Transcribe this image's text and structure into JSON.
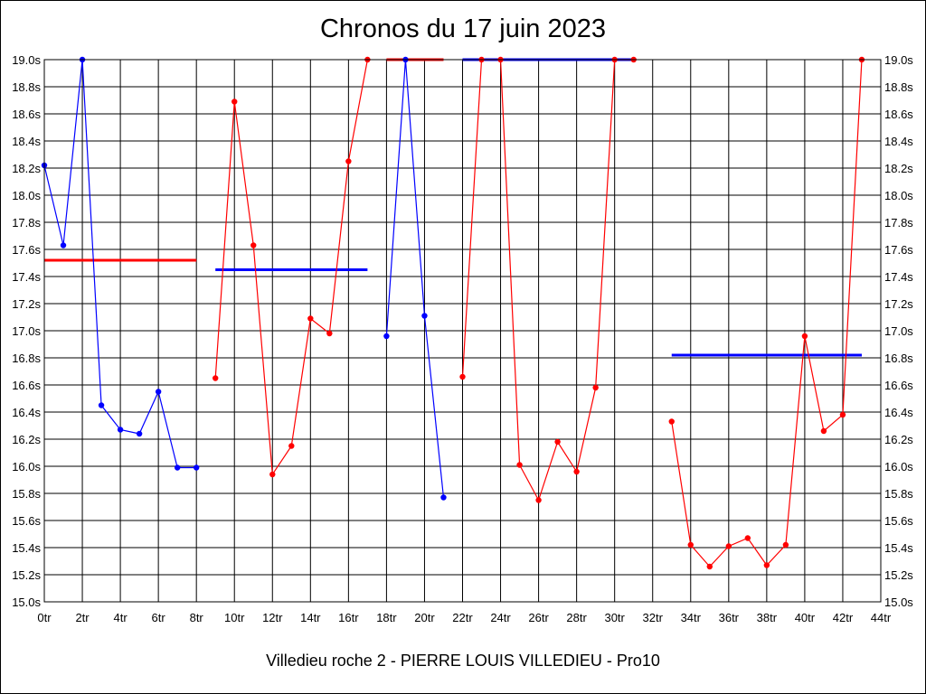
{
  "chart_data": {
    "type": "line",
    "title": "Chronos du 17 juin 2023",
    "subtitle": "Villedieu roche 2 - PIERRE LOUIS VILLEDIEU - Pro10",
    "xlabel": "",
    "ylabel": "",
    "xlim": [
      0,
      44
    ],
    "ylim": [
      15.0,
      19.0
    ],
    "grid": true,
    "x_ticks": [
      "0tr",
      "2tr",
      "4tr",
      "6tr",
      "8tr",
      "10tr",
      "12tr",
      "14tr",
      "16tr",
      "18tr",
      "20tr",
      "22tr",
      "24tr",
      "26tr",
      "28tr",
      "30tr",
      "32tr",
      "34tr",
      "36tr",
      "38tr",
      "40tr",
      "42tr",
      "44tr"
    ],
    "y_ticks": [
      "15.0s",
      "15.2s",
      "15.4s",
      "15.6s",
      "15.8s",
      "16.0s",
      "16.2s",
      "16.4s",
      "16.6s",
      "16.8s",
      "17.0s",
      "17.2s",
      "17.4s",
      "17.6s",
      "17.8s",
      "18.0s",
      "18.2s",
      "18.4s",
      "18.6s",
      "18.8s",
      "19.0s"
    ],
    "series": [
      {
        "color": "#0000ff",
        "x": [
          0,
          1,
          2,
          3,
          4,
          5,
          6,
          7,
          8
        ],
        "y": [
          18.22,
          17.63,
          19.0,
          16.45,
          16.27,
          16.24,
          16.55,
          15.99,
          15.99
        ]
      },
      {
        "color": "#ff0000",
        "x": [
          9,
          10,
          11,
          12,
          13,
          14,
          15,
          16,
          17
        ],
        "y": [
          16.65,
          18.69,
          17.63,
          15.94,
          16.15,
          17.09,
          16.98,
          18.25,
          19.0
        ]
      },
      {
        "color": "#0000ff",
        "x": [
          18,
          19,
          20,
          21
        ],
        "y": [
          16.96,
          19.0,
          17.11,
          15.77
        ]
      },
      {
        "color": "#ff0000",
        "x": [
          22,
          23,
          24,
          25,
          26,
          27,
          28,
          29,
          30,
          31
        ],
        "y": [
          16.66,
          19.0,
          19.0,
          16.01,
          15.75,
          16.18,
          15.96,
          16.58,
          19.0,
          19.0
        ]
      },
      {
        "color": "#ff0000",
        "x": [
          33,
          34,
          35,
          36,
          37,
          38,
          39,
          40,
          41,
          42,
          43
        ],
        "y": [
          16.33,
          15.42,
          15.26,
          15.41,
          15.47,
          15.27,
          15.42,
          16.96,
          16.26,
          16.38,
          19.0
        ]
      }
    ],
    "average_lines": [
      {
        "color": "#ff0000",
        "x": [
          0,
          8
        ],
        "y": 17.52
      },
      {
        "color": "#0000ff",
        "x": [
          9,
          17
        ],
        "y": 17.45
      },
      {
        "color": "#ff0000",
        "x": [
          18,
          21
        ],
        "y": 19.0
      },
      {
        "color": "#0000ff",
        "x": [
          22,
          31
        ],
        "y": 19.0
      },
      {
        "color": "#0000ff",
        "x": [
          33,
          43
        ],
        "y": 16.82
      }
    ]
  }
}
